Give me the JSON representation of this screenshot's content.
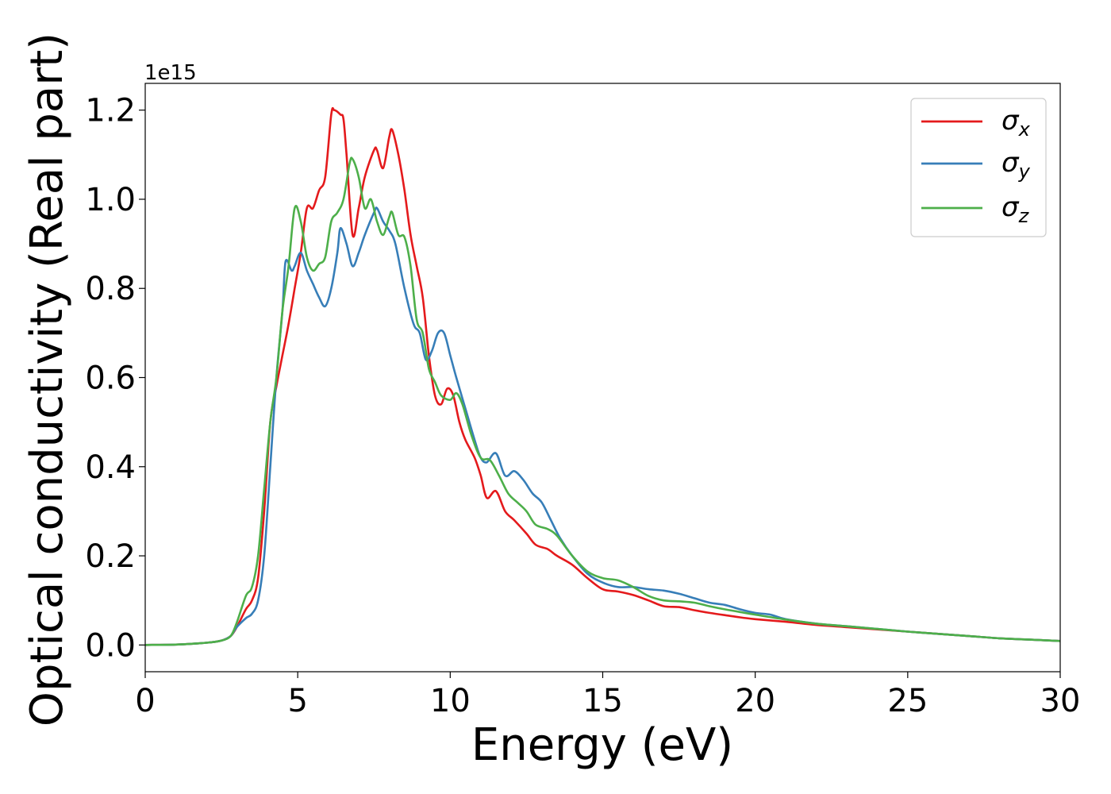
{
  "chart_data": {
    "type": "line",
    "xlabel": "Energy (eV)",
    "ylabel": "Optical conductivity (Real part)",
    "y_offset_label": "1e15",
    "xlim": [
      0,
      30
    ],
    "ylim": [
      -0.06,
      1.26
    ],
    "x_ticks": [
      0,
      5,
      10,
      15,
      20,
      25,
      30
    ],
    "x_tick_labels": [
      "0",
      "5",
      "10",
      "15",
      "20",
      "25",
      "30"
    ],
    "y_ticks": [
      0.0,
      0.2,
      0.4,
      0.6,
      0.8,
      1.0,
      1.2
    ],
    "y_tick_labels": [
      "0.0",
      "0.2",
      "0.4",
      "0.6",
      "0.8",
      "1.0",
      "1.2"
    ],
    "grid": false,
    "legend_position": "top-right",
    "series": [
      {
        "name": "σ",
        "subscript": "x",
        "color": "#e41a1c",
        "points": [
          [
            0,
            0
          ],
          [
            1,
            0.001
          ],
          [
            2,
            0.005
          ],
          [
            2.5,
            0.01
          ],
          [
            2.8,
            0.02
          ],
          [
            3,
            0.04
          ],
          [
            3.3,
            0.08
          ],
          [
            3.5,
            0.1
          ],
          [
            3.7,
            0.15
          ],
          [
            3.9,
            0.3
          ],
          [
            4.1,
            0.5
          ],
          [
            4.3,
            0.58
          ],
          [
            4.5,
            0.65
          ],
          [
            4.7,
            0.72
          ],
          [
            4.9,
            0.8
          ],
          [
            5.1,
            0.88
          ],
          [
            5.3,
            0.98
          ],
          [
            5.5,
            0.98
          ],
          [
            5.7,
            1.02
          ],
          [
            5.9,
            1.05
          ],
          [
            6.1,
            1.19
          ],
          [
            6.2,
            1.2
          ],
          [
            6.4,
            1.19
          ],
          [
            6.5,
            1.18
          ],
          [
            6.6,
            1.1
          ],
          [
            6.8,
            0.92
          ],
          [
            7.0,
            0.98
          ],
          [
            7.2,
            1.05
          ],
          [
            7.5,
            1.11
          ],
          [
            7.6,
            1.11
          ],
          [
            7.8,
            1.07
          ],
          [
            8.0,
            1.14
          ],
          [
            8.1,
            1.155
          ],
          [
            8.3,
            1.1
          ],
          [
            8.5,
            1.02
          ],
          [
            8.7,
            0.92
          ],
          [
            8.9,
            0.85
          ],
          [
            9.1,
            0.78
          ],
          [
            9.3,
            0.65
          ],
          [
            9.5,
            0.56
          ],
          [
            9.7,
            0.54
          ],
          [
            9.9,
            0.575
          ],
          [
            10.1,
            0.56
          ],
          [
            10.3,
            0.5
          ],
          [
            10.5,
            0.46
          ],
          [
            10.8,
            0.42
          ],
          [
            11.0,
            0.38
          ],
          [
            11.2,
            0.33
          ],
          [
            11.5,
            0.345
          ],
          [
            11.8,
            0.3
          ],
          [
            12.1,
            0.28
          ],
          [
            12.5,
            0.25
          ],
          [
            12.8,
            0.225
          ],
          [
            13.2,
            0.215
          ],
          [
            13.5,
            0.2
          ],
          [
            14.0,
            0.18
          ],
          [
            14.5,
            0.15
          ],
          [
            15,
            0.125
          ],
          [
            15.5,
            0.12
          ],
          [
            16,
            0.112
          ],
          [
            16.5,
            0.1
          ],
          [
            17,
            0.087
          ],
          [
            17.5,
            0.085
          ],
          [
            18,
            0.078
          ],
          [
            18.5,
            0.072
          ],
          [
            19,
            0.067
          ],
          [
            19.5,
            0.062
          ],
          [
            20,
            0.058
          ],
          [
            21,
            0.052
          ],
          [
            22,
            0.045
          ],
          [
            23,
            0.04
          ],
          [
            24,
            0.035
          ],
          [
            25,
            0.03
          ],
          [
            26,
            0.025
          ],
          [
            27,
            0.02
          ],
          [
            28,
            0.015
          ],
          [
            29,
            0.012
          ],
          [
            30,
            0.009
          ]
        ]
      },
      {
        "name": "σ",
        "subscript": "y",
        "color": "#377eb8",
        "points": [
          [
            0,
            0
          ],
          [
            1,
            0.001
          ],
          [
            2,
            0.005
          ],
          [
            2.5,
            0.01
          ],
          [
            2.8,
            0.02
          ],
          [
            3,
            0.04
          ],
          [
            3.3,
            0.06
          ],
          [
            3.5,
            0.07
          ],
          [
            3.7,
            0.1
          ],
          [
            3.9,
            0.2
          ],
          [
            4.1,
            0.4
          ],
          [
            4.3,
            0.6
          ],
          [
            4.5,
            0.75
          ],
          [
            4.6,
            0.86
          ],
          [
            4.8,
            0.84
          ],
          [
            4.9,
            0.85
          ],
          [
            5.1,
            0.88
          ],
          [
            5.3,
            0.84
          ],
          [
            5.5,
            0.81
          ],
          [
            5.7,
            0.78
          ],
          [
            5.9,
            0.76
          ],
          [
            6.1,
            0.8
          ],
          [
            6.3,
            0.88
          ],
          [
            6.4,
            0.935
          ],
          [
            6.6,
            0.9
          ],
          [
            6.8,
            0.85
          ],
          [
            7.0,
            0.88
          ],
          [
            7.2,
            0.92
          ],
          [
            7.5,
            0.97
          ],
          [
            7.6,
            0.98
          ],
          [
            7.8,
            0.95
          ],
          [
            8.0,
            0.93
          ],
          [
            8.2,
            0.9
          ],
          [
            8.5,
            0.8
          ],
          [
            8.8,
            0.72
          ],
          [
            9.0,
            0.7
          ],
          [
            9.2,
            0.64
          ],
          [
            9.4,
            0.66
          ],
          [
            9.6,
            0.7
          ],
          [
            9.8,
            0.7
          ],
          [
            10.0,
            0.65
          ],
          [
            10.2,
            0.6
          ],
          [
            10.5,
            0.53
          ],
          [
            10.8,
            0.46
          ],
          [
            11.0,
            0.42
          ],
          [
            11.2,
            0.41
          ],
          [
            11.5,
            0.43
          ],
          [
            11.8,
            0.38
          ],
          [
            12.1,
            0.39
          ],
          [
            12.4,
            0.37
          ],
          [
            12.7,
            0.34
          ],
          [
            13.0,
            0.32
          ],
          [
            13.3,
            0.28
          ],
          [
            13.6,
            0.24
          ],
          [
            14.0,
            0.2
          ],
          [
            14.5,
            0.16
          ],
          [
            15,
            0.14
          ],
          [
            15.5,
            0.13
          ],
          [
            16,
            0.13
          ],
          [
            16.5,
            0.125
          ],
          [
            17,
            0.122
          ],
          [
            17.5,
            0.115
          ],
          [
            18,
            0.105
          ],
          [
            18.5,
            0.095
          ],
          [
            19,
            0.09
          ],
          [
            19.5,
            0.08
          ],
          [
            20,
            0.072
          ],
          [
            20.5,
            0.068
          ],
          [
            21,
            0.058
          ],
          [
            22,
            0.048
          ],
          [
            23,
            0.042
          ],
          [
            24,
            0.036
          ],
          [
            25,
            0.03
          ],
          [
            26,
            0.025
          ],
          [
            27,
            0.02
          ],
          [
            28,
            0.015
          ],
          [
            29,
            0.012
          ],
          [
            30,
            0.009
          ]
        ]
      },
      {
        "name": "σ",
        "subscript": "z",
        "color": "#4daf4a",
        "points": [
          [
            0,
            0
          ],
          [
            1,
            0.001
          ],
          [
            2,
            0.005
          ],
          [
            2.5,
            0.01
          ],
          [
            2.8,
            0.02
          ],
          [
            3,
            0.05
          ],
          [
            3.3,
            0.11
          ],
          [
            3.5,
            0.13
          ],
          [
            3.7,
            0.2
          ],
          [
            3.9,
            0.35
          ],
          [
            4.1,
            0.5
          ],
          [
            4.3,
            0.6
          ],
          [
            4.5,
            0.75
          ],
          [
            4.7,
            0.85
          ],
          [
            4.9,
            0.98
          ],
          [
            5.1,
            0.95
          ],
          [
            5.3,
            0.87
          ],
          [
            5.5,
            0.84
          ],
          [
            5.7,
            0.855
          ],
          [
            5.9,
            0.87
          ],
          [
            6.1,
            0.95
          ],
          [
            6.3,
            0.97
          ],
          [
            6.5,
            1.0
          ],
          [
            6.7,
            1.08
          ],
          [
            6.8,
            1.09
          ],
          [
            7.0,
            1.05
          ],
          [
            7.2,
            0.98
          ],
          [
            7.4,
            1.0
          ],
          [
            7.6,
            0.95
          ],
          [
            7.8,
            0.92
          ],
          [
            8.0,
            0.96
          ],
          [
            8.1,
            0.97
          ],
          [
            8.3,
            0.92
          ],
          [
            8.5,
            0.915
          ],
          [
            8.7,
            0.85
          ],
          [
            8.9,
            0.73
          ],
          [
            9.1,
            0.7
          ],
          [
            9.3,
            0.62
          ],
          [
            9.5,
            0.59
          ],
          [
            9.7,
            0.56
          ],
          [
            10.0,
            0.55
          ],
          [
            10.2,
            0.565
          ],
          [
            10.4,
            0.54
          ],
          [
            10.7,
            0.47
          ],
          [
            11.0,
            0.42
          ],
          [
            11.3,
            0.415
          ],
          [
            11.6,
            0.38
          ],
          [
            11.9,
            0.34
          ],
          [
            12.2,
            0.32
          ],
          [
            12.5,
            0.3
          ],
          [
            12.8,
            0.27
          ],
          [
            13.2,
            0.26
          ],
          [
            13.5,
            0.245
          ],
          [
            14.0,
            0.2
          ],
          [
            14.5,
            0.165
          ],
          [
            15,
            0.15
          ],
          [
            15.5,
            0.145
          ],
          [
            16,
            0.13
          ],
          [
            16.5,
            0.11
          ],
          [
            17,
            0.1
          ],
          [
            17.5,
            0.098
          ],
          [
            18,
            0.095
          ],
          [
            18.5,
            0.087
          ],
          [
            19,
            0.08
          ],
          [
            19.5,
            0.074
          ],
          [
            20,
            0.068
          ],
          [
            21,
            0.057
          ],
          [
            22,
            0.048
          ],
          [
            23,
            0.042
          ],
          [
            24,
            0.036
          ],
          [
            25,
            0.03
          ],
          [
            26,
            0.025
          ],
          [
            27,
            0.02
          ],
          [
            28,
            0.015
          ],
          [
            29,
            0.012
          ],
          [
            30,
            0.009
          ]
        ]
      }
    ]
  }
}
